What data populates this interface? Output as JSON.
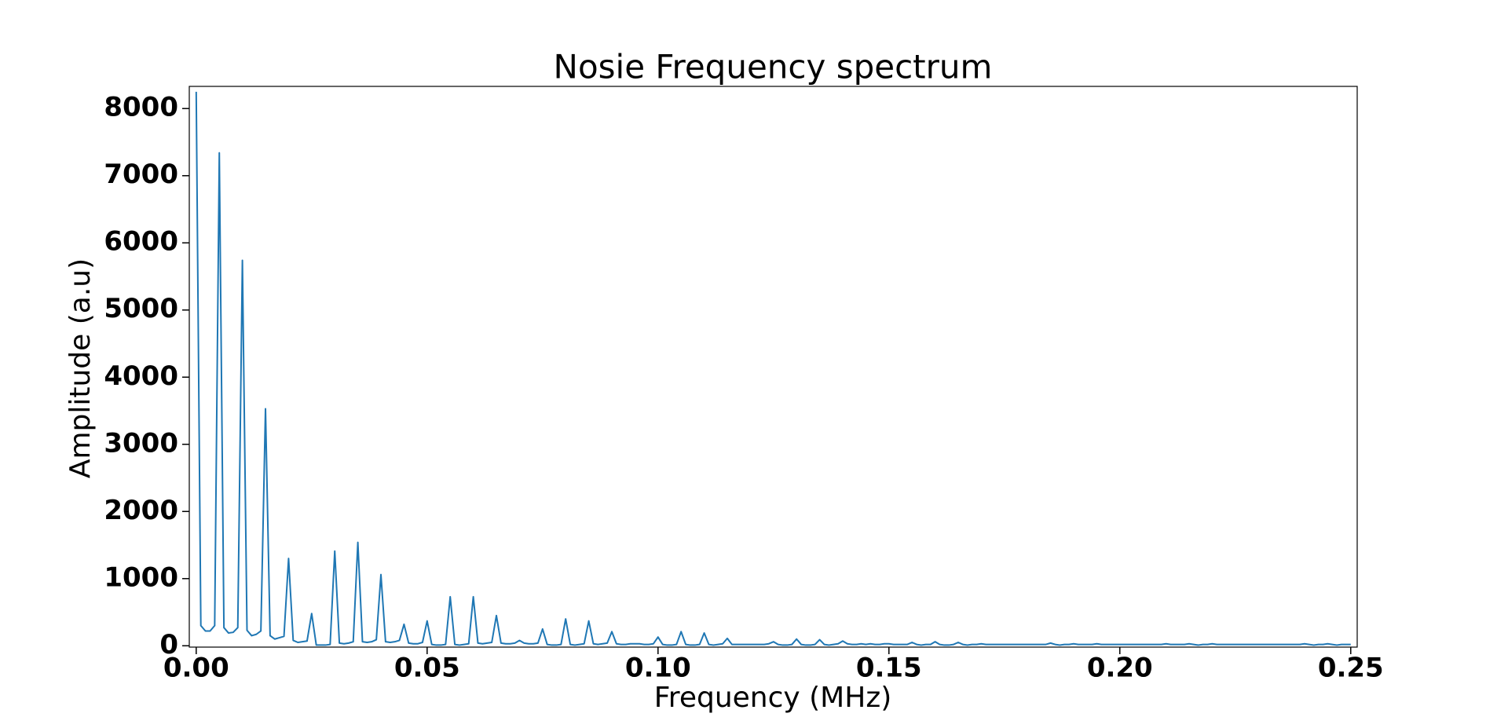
{
  "chart_data": {
    "type": "line",
    "title": "Nosie Frequency spectrum",
    "x_label": "Frequency (MHz)",
    "y_label": "Amplitude (a.u)",
    "color": "#1f77b4",
    "x": [
      0,
      0.001,
      0.002,
      0.003,
      0.004,
      0.005,
      0.006,
      0.007,
      0.008,
      0.009,
      0.01,
      0.011,
      0.012,
      0.013,
      0.014,
      0.015,
      0.016,
      0.017,
      0.018,
      0.019,
      0.02,
      0.021,
      0.022,
      0.023,
      0.024,
      0.025,
      0.026,
      0.027,
      0.028,
      0.029,
      0.03,
      0.031,
      0.032,
      0.033,
      0.034,
      0.035,
      0.036,
      0.037,
      0.038,
      0.039,
      0.04,
      0.041,
      0.042,
      0.043,
      0.044,
      0.045,
      0.046,
      0.047,
      0.048,
      0.049,
      0.05,
      0.051,
      0.052,
      0.053,
      0.054,
      0.055,
      0.056,
      0.057,
      0.058,
      0.059,
      0.06,
      0.061,
      0.062,
      0.063,
      0.064,
      0.065,
      0.066,
      0.067,
      0.068,
      0.069,
      0.07,
      0.071,
      0.072,
      0.073,
      0.074,
      0.075,
      0.076,
      0.077,
      0.078,
      0.079,
      0.08,
      0.081,
      0.082,
      0.083,
      0.084,
      0.085,
      0.086,
      0.087,
      0.088,
      0.089,
      0.09,
      0.091,
      0.092,
      0.093,
      0.094,
      0.095,
      0.096,
      0.097,
      0.098,
      0.099,
      0.1,
      0.101,
      0.102,
      0.103,
      0.104,
      0.105,
      0.106,
      0.107,
      0.108,
      0.109,
      0.11,
      0.111,
      0.112,
      0.113,
      0.114,
      0.115,
      0.116,
      0.117,
      0.118,
      0.119,
      0.12,
      0.121,
      0.122,
      0.123,
      0.124,
      0.125,
      0.126,
      0.127,
      0.128,
      0.129,
      0.13,
      0.131,
      0.132,
      0.133,
      0.134,
      0.135,
      0.136,
      0.137,
      0.138,
      0.139,
      0.14,
      0.141,
      0.142,
      0.143,
      0.144,
      0.145,
      0.146,
      0.147,
      0.148,
      0.149,
      0.15,
      0.151,
      0.152,
      0.153,
      0.154,
      0.155,
      0.156,
      0.157,
      0.158,
      0.159,
      0.16,
      0.161,
      0.162,
      0.163,
      0.164,
      0.165,
      0.166,
      0.167,
      0.168,
      0.169,
      0.17,
      0.171,
      0.172,
      0.173,
      0.174,
      0.175,
      0.176,
      0.177,
      0.178,
      0.179,
      0.18,
      0.181,
      0.182,
      0.183,
      0.184,
      0.185,
      0.186,
      0.187,
      0.188,
      0.189,
      0.19,
      0.191,
      0.192,
      0.193,
      0.194,
      0.195,
      0.196,
      0.197,
      0.198,
      0.199,
      0.2,
      0.201,
      0.202,
      0.203,
      0.204,
      0.205,
      0.206,
      0.207,
      0.208,
      0.209,
      0.21,
      0.211,
      0.212,
      0.213,
      0.214,
      0.215,
      0.216,
      0.217,
      0.218,
      0.219,
      0.22,
      0.221,
      0.222,
      0.223,
      0.224,
      0.225,
      0.226,
      0.227,
      0.228,
      0.229,
      0.23,
      0.231,
      0.232,
      0.233,
      0.234,
      0.235,
      0.236,
      0.237,
      0.238,
      0.239,
      0.24,
      0.241,
      0.242,
      0.243,
      0.244,
      0.245,
      0.246,
      0.247,
      0.248,
      0.249,
      0.25
    ],
    "values": [
      8250,
      300,
      220,
      220,
      300,
      7340,
      270,
      190,
      200,
      270,
      5740,
      230,
      150,
      170,
      220,
      3530,
      150,
      100,
      120,
      140,
      1300,
      80,
      50,
      60,
      70,
      480,
      10,
      10,
      10,
      20,
      1410,
      40,
      30,
      40,
      60,
      1540,
      60,
      50,
      60,
      90,
      1060,
      60,
      50,
      60,
      80,
      320,
      40,
      30,
      30,
      50,
      370,
      20,
      10,
      10,
      20,
      730,
      20,
      10,
      20,
      30,
      730,
      40,
      30,
      40,
      50,
      450,
      40,
      30,
      30,
      40,
      80,
      40,
      30,
      30,
      40,
      250,
      20,
      10,
      10,
      20,
      400,
      20,
      10,
      20,
      30,
      370,
      30,
      20,
      30,
      40,
      210,
      30,
      20,
      20,
      30,
      30,
      30,
      20,
      20,
      30,
      130,
      20,
      10,
      10,
      20,
      210,
      20,
      10,
      10,
      20,
      190,
      20,
      10,
      20,
      30,
      110,
      20,
      20,
      20,
      20,
      20,
      20,
      20,
      20,
      30,
      60,
      20,
      10,
      10,
      20,
      100,
      20,
      10,
      10,
      20,
      90,
      20,
      10,
      20,
      30,
      70,
      30,
      20,
      20,
      30,
      20,
      30,
      20,
      20,
      30,
      30,
      20,
      20,
      20,
      20,
      50,
      20,
      10,
      20,
      20,
      60,
      20,
      10,
      10,
      20,
      50,
      20,
      10,
      20,
      20,
      30,
      20,
      20,
      20,
      20,
      20,
      20,
      20,
      20,
      20,
      20,
      20,
      20,
      20,
      20,
      40,
      20,
      10,
      20,
      20,
      30,
      20,
      20,
      20,
      20,
      30,
      20,
      20,
      20,
      20,
      20,
      20,
      20,
      20,
      20,
      20,
      20,
      20,
      20,
      20,
      30,
      20,
      20,
      20,
      20,
      30,
      20,
      10,
      20,
      20,
      30,
      20,
      20,
      20,
      20,
      20,
      20,
      20,
      20,
      20,
      20,
      20,
      20,
      20,
      20,
      20,
      20,
      20,
      20,
      20,
      30,
      20,
      10,
      20,
      20,
      30,
      20,
      10,
      20,
      20,
      20
    ],
    "xlim": [
      -0.0015,
      0.2514
    ],
    "ylim": [
      -20,
      8330
    ],
    "xticks": [
      {
        "value": 0,
        "label": "0.00"
      },
      {
        "value": 0.05,
        "label": "0.05"
      },
      {
        "value": 0.1,
        "label": "0.10"
      },
      {
        "value": 0.15,
        "label": "0.15"
      },
      {
        "value": 0.2,
        "label": "0.20"
      },
      {
        "value": 0.25,
        "label": "0.25"
      }
    ],
    "yticks": [
      0,
      1000,
      2000,
      3000,
      4000,
      5000,
      6000,
      7000,
      8000
    ]
  }
}
